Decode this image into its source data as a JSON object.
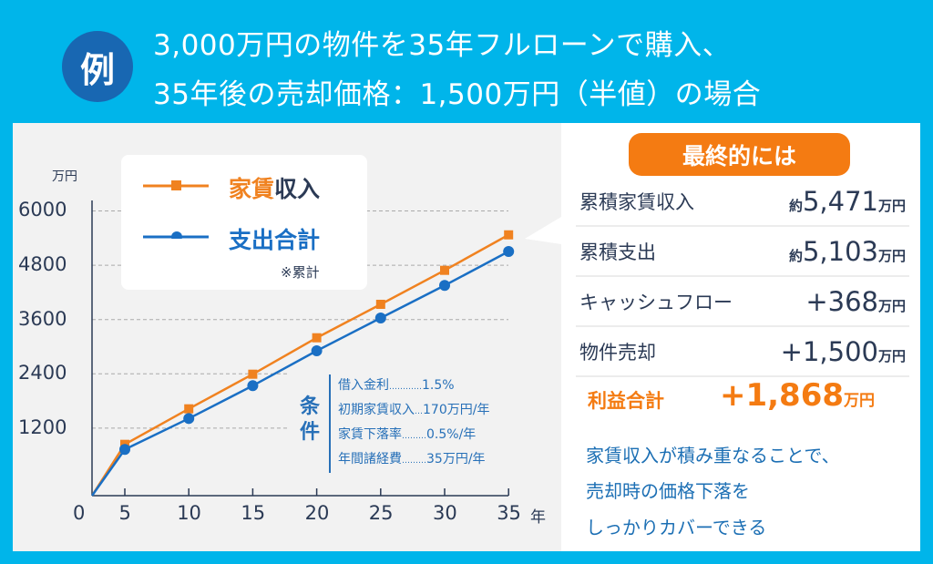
{
  "header": {
    "badge": "例",
    "line1": "3,000万円の物件を35年フルローンで購入、",
    "line2": "35年後の売却価格：1,500万円（半値）の場合"
  },
  "legend": {
    "income_a": "家賃",
    "income_b": "収入",
    "expense": "支出合計",
    "note": "※累計"
  },
  "conditions": {
    "title_1": "条",
    "title_2": "件",
    "items": [
      {
        "label": "借入金利",
        "dots": "…………",
        "value": "1.5%"
      },
      {
        "label": "初期家賃収入",
        "dots": "…",
        "value": "170万円/年"
      },
      {
        "label": "家賃下落率",
        "dots": "………",
        "value": "0.5%/年"
      },
      {
        "label": "年間諸経費",
        "dots": "………",
        "value": "35万円/年"
      }
    ]
  },
  "summary": {
    "badge": "最終的には",
    "rows": [
      {
        "label": "累積家賃収入",
        "prefix": "約",
        "value": "5,471",
        "unit": "万円"
      },
      {
        "label": "累積支出",
        "prefix": "約",
        "value": "5,103",
        "unit": "万円"
      },
      {
        "label": "キャッシュフロー",
        "prefix": "",
        "value": "+368",
        "unit": "万円"
      },
      {
        "label": "物件売却",
        "prefix": "",
        "value": "+1,500",
        "unit": "万円"
      }
    ],
    "total_label": "利益合計",
    "total_value": "+1,868",
    "total_unit": "万円",
    "message": [
      "家賃収入が積み重なることで、",
      "売却時の価格下落を",
      "しっかりカバーできる"
    ]
  },
  "colors": {
    "income": "#f08220",
    "expense": "#1a6fc4",
    "bg": "#00b5ea"
  },
  "chart_data": {
    "type": "line",
    "ylabel": "万円",
    "xlabel": "年",
    "x": [
      0,
      5,
      10,
      15,
      20,
      25,
      30,
      35
    ],
    "x_ticks": [
      "0",
      "5",
      "10",
      "15",
      "20",
      "25",
      "30",
      "35"
    ],
    "y_ticks": [
      "1200",
      "2400",
      "3600",
      "4800",
      "6000"
    ],
    "ylim": [
      0,
      6000
    ],
    "grid": true,
    "legend": "top-left",
    "series": [
      {
        "name": "家賃収入",
        "marker": "square",
        "values": [
          0,
          842,
          1627,
          2392,
          3197,
          3936,
          4687,
          5471
        ]
      },
      {
        "name": "支出合計",
        "marker": "circle",
        "values": [
          0,
          729,
          1413,
          2138,
          2909,
          3634,
          4353,
          5103
        ]
      }
    ]
  }
}
